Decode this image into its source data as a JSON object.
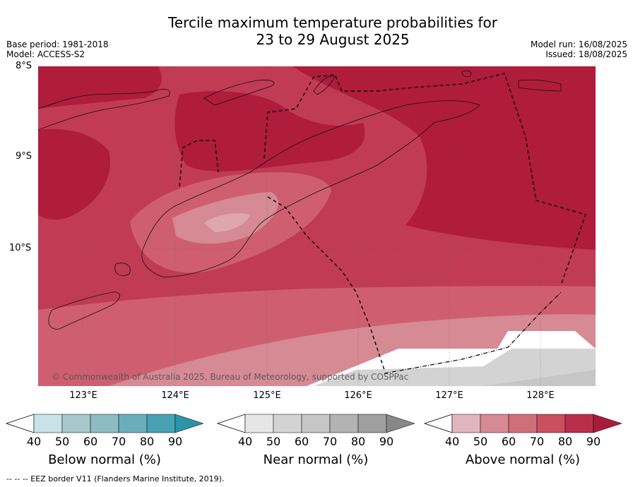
{
  "header": {
    "title_line1": "Tercile maximum temperature probabilities for",
    "title_line2": "23 to 29 August 2025",
    "base_period": "Base period: 1981-2018",
    "model": "Model: ACCESS-S2",
    "model_run": "Model run: 16/08/2025",
    "issued": "Issued: 18/08/2025"
  },
  "map": {
    "lat_labels": [
      "8°S",
      "9°S",
      "10°S"
    ],
    "lon_labels": [
      "123°E",
      "124°E",
      "125°E",
      "126°E",
      "127°E",
      "128°E"
    ],
    "copyright": "© Commonwealth of Australia 2025, Bureau of Meteorology, supported by COSPPac",
    "colors": {
      "above_70_80": "#c13b55",
      "above_80_90": "#b01c3c",
      "above_60_70": "#cf5f70",
      "above_50_60": "#d68a93",
      "near_normal": "#d3d3d3"
    }
  },
  "legends": [
    {
      "title": "Below normal (%)",
      "ticks": [
        "40",
        "50",
        "60",
        "70",
        "80",
        "90"
      ],
      "colors": [
        "#c8e2e8",
        "#a8c8cd",
        "#8bbcc3",
        "#6aaebb",
        "#47a2b3",
        "#2d93a8"
      ]
    },
    {
      "title": "Near normal (%)",
      "ticks": [
        "40",
        "50",
        "60",
        "70",
        "80",
        "90"
      ],
      "colors": [
        "#e6e6e6",
        "#d3d3d3",
        "#c6c6c6",
        "#b3b3b3",
        "#9f9f9f",
        "#888888"
      ]
    },
    {
      "title": "Above normal (%)",
      "ticks": [
        "40",
        "50",
        "60",
        "70",
        "80",
        "90"
      ],
      "colors": [
        "#e2b5bc",
        "#d68a93",
        "#cf6f7a",
        "#c8505f",
        "#b92f4a",
        "#a71b3c"
      ]
    }
  ],
  "footnote": "--  --  -- EEZ border V11 (Flanders Marine Institute, 2019)."
}
